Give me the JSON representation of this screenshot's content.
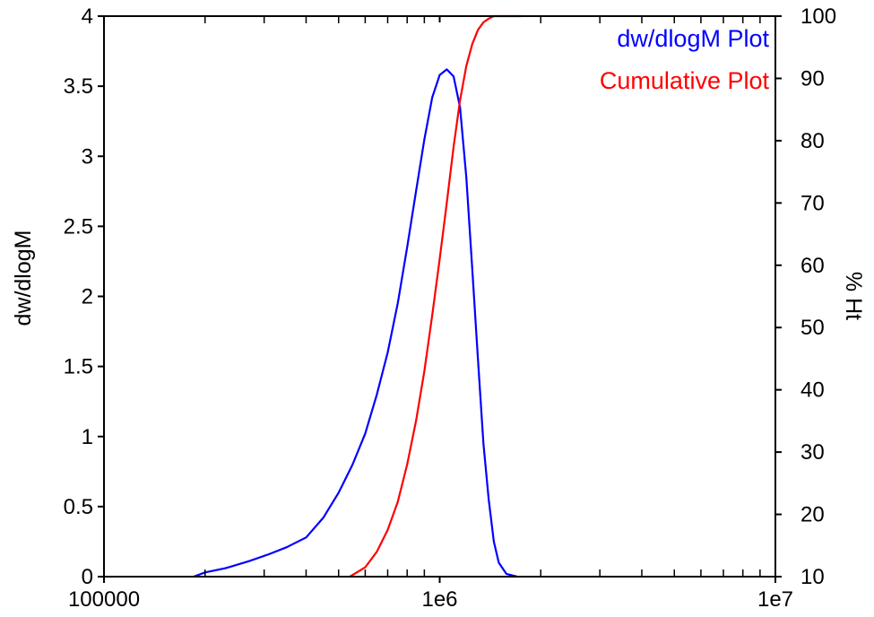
{
  "chart_data": {
    "type": "line",
    "x_scale": "log",
    "xlim": [
      100000,
      10000000
    ],
    "x_ticks": [
      100000,
      1000000,
      10000000
    ],
    "x_tick_labels": [
      "100000",
      "1e6",
      "1e7"
    ],
    "y_left": {
      "label": "dw/dlogM",
      "lim": [
        0,
        4
      ],
      "ticks": [
        0,
        0.5,
        1,
        1.5,
        2,
        2.5,
        3,
        3.5,
        4
      ],
      "tick_labels": [
        "0",
        "0.5",
        "1",
        "1.5",
        "2",
        "2.5",
        "3",
        "3.5",
        "4"
      ]
    },
    "y_right": {
      "label": "% Ht",
      "lim": [
        10,
        100
      ],
      "ticks": [
        10,
        20,
        30,
        40,
        50,
        60,
        70,
        80,
        90,
        100
      ],
      "tick_labels": [
        "10",
        "20",
        "30",
        "40",
        "50",
        "60",
        "70",
        "80",
        "90",
        "100"
      ]
    },
    "grid": false,
    "legend_position": "top-right",
    "series": [
      {
        "name": "dw/dlogM Plot",
        "axis": "left",
        "color": "#0000ff",
        "points": [
          [
            185000,
            0.0
          ],
          [
            200000,
            0.03
          ],
          [
            230000,
            0.06
          ],
          [
            270000,
            0.11
          ],
          [
            310000,
            0.16
          ],
          [
            350000,
            0.21
          ],
          [
            400000,
            0.28
          ],
          [
            450000,
            0.42
          ],
          [
            500000,
            0.6
          ],
          [
            550000,
            0.8
          ],
          [
            600000,
            1.02
          ],
          [
            650000,
            1.3
          ],
          [
            700000,
            1.6
          ],
          [
            750000,
            1.95
          ],
          [
            800000,
            2.35
          ],
          [
            850000,
            2.75
          ],
          [
            900000,
            3.12
          ],
          [
            950000,
            3.42
          ],
          [
            1000000,
            3.58
          ],
          [
            1050000,
            3.62
          ],
          [
            1100000,
            3.57
          ],
          [
            1150000,
            3.35
          ],
          [
            1200000,
            2.85
          ],
          [
            1250000,
            2.2
          ],
          [
            1300000,
            1.55
          ],
          [
            1350000,
            0.95
          ],
          [
            1400000,
            0.55
          ],
          [
            1450000,
            0.25
          ],
          [
            1500000,
            0.1
          ],
          [
            1580000,
            0.02
          ],
          [
            1700000,
            0.0
          ]
        ]
      },
      {
        "name": "Cumulative Plot",
        "axis": "right",
        "color": "#ff0000",
        "points": [
          [
            540000,
            10.0
          ],
          [
            600000,
            11.5
          ],
          [
            650000,
            14.0
          ],
          [
            700000,
            17.5
          ],
          [
            750000,
            22.0
          ],
          [
            800000,
            28.0
          ],
          [
            850000,
            35.0
          ],
          [
            900000,
            43.0
          ],
          [
            950000,
            52.0
          ],
          [
            1000000,
            61.0
          ],
          [
            1050000,
            70.0
          ],
          [
            1100000,
            79.0
          ],
          [
            1150000,
            86.5
          ],
          [
            1200000,
            92.0
          ],
          [
            1250000,
            95.5
          ],
          [
            1300000,
            97.8
          ],
          [
            1350000,
            99.0
          ],
          [
            1400000,
            99.6
          ],
          [
            1450000,
            100.0
          ],
          [
            1750000,
            100.0
          ]
        ]
      }
    ]
  }
}
